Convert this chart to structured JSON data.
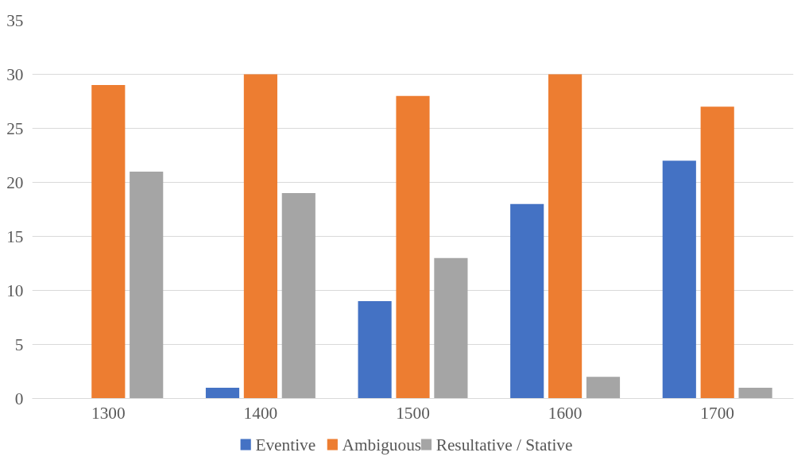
{
  "chart_data": {
    "type": "bar",
    "categories": [
      "1300",
      "1400",
      "1500",
      "1600",
      "1700"
    ],
    "series": [
      {
        "name": "Eventive",
        "color": "#4472c4",
        "values": [
          0,
          1,
          9,
          18,
          22
        ]
      },
      {
        "name": "Ambiguous",
        "color": "#ed7d31",
        "values": [
          29,
          30,
          28,
          30,
          27
        ]
      },
      {
        "name": "Resultative / Stative",
        "color": "#a5a5a5",
        "values": [
          21,
          19,
          13,
          2,
          1
        ]
      }
    ],
    "ylim": [
      0,
      35
    ],
    "yticks": [
      0,
      5,
      10,
      15,
      20,
      25,
      30,
      35
    ],
    "grid": "y",
    "legend": "bottom"
  }
}
